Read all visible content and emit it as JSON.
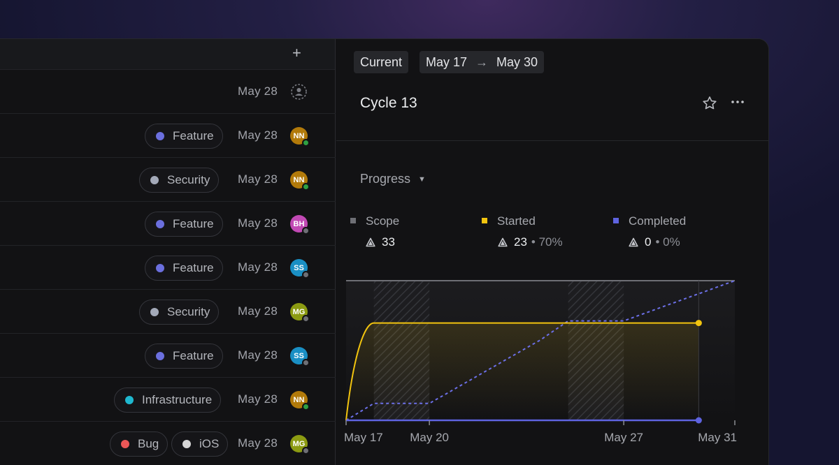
{
  "list": {
    "rows": [
      {
        "labels": [],
        "date": "May 28",
        "assignee": null
      },
      {
        "labels": [
          {
            "name": "Feature",
            "color": "#6b6fde"
          }
        ],
        "date": "May 28",
        "assignee": {
          "initials": "NN",
          "bg": "#b27a0a",
          "status": "#2ea043"
        }
      },
      {
        "labels": [
          {
            "name": "Security",
            "color": "#a3a9b8"
          }
        ],
        "date": "May 28",
        "assignee": {
          "initials": "NN",
          "bg": "#b27a0a",
          "status": "#2ea043"
        }
      },
      {
        "labels": [
          {
            "name": "Feature",
            "color": "#6b6fde"
          }
        ],
        "date": "May 28",
        "assignee": {
          "initials": "BH",
          "bg": "#c149b4",
          "status": "#6e6f75"
        }
      },
      {
        "labels": [
          {
            "name": "Feature",
            "color": "#6b6fde"
          }
        ],
        "date": "May 28",
        "assignee": {
          "initials": "SS",
          "bg": "#1a8fc4",
          "status": "#6e6f75"
        }
      },
      {
        "labels": [
          {
            "name": "Security",
            "color": "#a3a9b8"
          }
        ],
        "date": "May 28",
        "assignee": {
          "initials": "MG",
          "bg": "#8c9b12",
          "status": "#6e6f75"
        }
      },
      {
        "labels": [
          {
            "name": "Feature",
            "color": "#6b6fde"
          }
        ],
        "date": "May 28",
        "assignee": {
          "initials": "SS",
          "bg": "#1a8fc4",
          "status": "#6e6f75"
        }
      },
      {
        "labels": [
          {
            "name": "Infrastructure",
            "color": "#1fb8cf"
          }
        ],
        "date": "May 28",
        "assignee": {
          "initials": "NN",
          "bg": "#b27a0a",
          "status": "#2ea043"
        }
      },
      {
        "labels": [
          {
            "name": "Bug",
            "color": "#eb5757"
          },
          {
            "name": "iOS",
            "color": "#d6d6d6"
          }
        ],
        "date": "May 28",
        "assignee": {
          "initials": "MG",
          "bg": "#8c9b12",
          "status": "#6e6f75"
        }
      }
    ]
  },
  "cycle": {
    "current_label": "Current",
    "range_start": "May 17",
    "range_arrow": "→",
    "range_end": "May 30",
    "title": "Cycle 13",
    "progress_label": "Progress",
    "legend": [
      {
        "name": "Scope",
        "color": "#6e6f75",
        "value": "33",
        "sub": ""
      },
      {
        "name": "Started",
        "color": "#f2c40f",
        "value": "23",
        "sub": "• 70%"
      },
      {
        "name": "Completed",
        "color": "#5e63e0",
        "value": "0",
        "sub": "• 0%"
      }
    ]
  },
  "chart_data": {
    "type": "line",
    "title": "",
    "xlabel": "",
    "ylabel": "",
    "x_ticks": [
      "May 17",
      "May 20",
      "May 27",
      "May 31"
    ],
    "x_range": [
      0,
      14
    ],
    "ylim": [
      0,
      33
    ],
    "shaded_weekends": [
      [
        1,
        3
      ],
      [
        8,
        10
      ]
    ],
    "series": [
      {
        "name": "Scope",
        "color": "#6e6f75",
        "style": "solid",
        "x": [
          0,
          14
        ],
        "y": [
          33,
          33
        ]
      },
      {
        "name": "Started",
        "color": "#f2c40f",
        "style": "solid",
        "x": [
          0,
          1,
          12.7
        ],
        "y": [
          0,
          23,
          23
        ],
        "end_marker": true
      },
      {
        "name": "Completed",
        "color": "#5e63e0",
        "style": "solid",
        "x": [
          0,
          12.7
        ],
        "y": [
          0,
          0
        ],
        "end_marker": true
      },
      {
        "name": "",
        "color": "#6c70e8",
        "style": "dashed",
        "x": [
          0,
          1,
          3,
          7,
          8,
          10,
          14
        ],
        "y": [
          0,
          4,
          4,
          19,
          23.5,
          23.5,
          33
        ]
      }
    ]
  }
}
